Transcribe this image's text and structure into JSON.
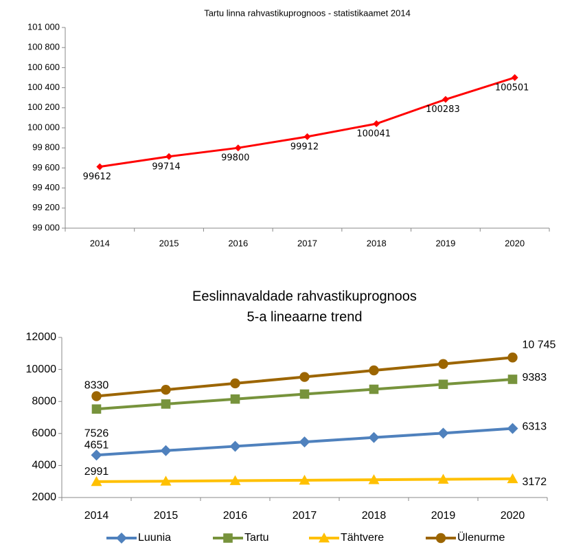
{
  "chart_data": [
    {
      "type": "line",
      "title": "Tartu linna rahvastikuprognoos - statistikaamet 2014",
      "categories": [
        "2014",
        "2015",
        "2016",
        "2017",
        "2018",
        "2019",
        "2020"
      ],
      "series": [
        {
          "name": "Tartu linn",
          "color": "#ff0000",
          "values": [
            99612,
            99714,
            99800,
            99912,
            100041,
            100283,
            100501
          ]
        }
      ],
      "ylim": [
        99000,
        101000
      ],
      "yticks": [
        {
          "value": 99000,
          "label": "99 000"
        },
        {
          "value": 99200,
          "label": "99 200"
        },
        {
          "value": 99400,
          "label": "99 400"
        },
        {
          "value": 99600,
          "label": "99 600"
        },
        {
          "value": 99800,
          "label": "99 800"
        },
        {
          "value": 100000,
          "label": "100 000"
        },
        {
          "value": 100200,
          "label": "100 200"
        },
        {
          "value": 100400,
          "label": "100 400"
        },
        {
          "value": 100600,
          "label": "100 600"
        },
        {
          "value": 100800,
          "label": "100 800"
        },
        {
          "value": 101000,
          "label": "101 000"
        }
      ],
      "legend": false
    },
    {
      "type": "line",
      "title": [
        "Eeslinnavaldade rahvastikuprognoos",
        "5-a lineaarne trend"
      ],
      "categories": [
        "2014",
        "2015",
        "2016",
        "2017",
        "2018",
        "2019",
        "2020"
      ],
      "series": [
        {
          "name": "Luunia",
          "color": "#4f81bd",
          "values": [
            4651,
            4930,
            5200,
            5470,
            5750,
            6020,
            6313
          ],
          "value_labels": [
            "4651",
            null,
            null,
            null,
            null,
            null,
            "6313"
          ]
        },
        {
          "name": "Tartu",
          "color": "#77933c",
          "values": [
            7526,
            7840,
            8150,
            8460,
            8760,
            9070,
            9383
          ],
          "value_labels": [
            "7526",
            null,
            null,
            null,
            null,
            null,
            "9383"
          ]
        },
        {
          "name": "Tähtvere",
          "color": "#ffc000",
          "values": [
            2991,
            3020,
            3050,
            3080,
            3110,
            3140,
            3172
          ],
          "value_labels": [
            "2991",
            null,
            null,
            null,
            null,
            null,
            "3172"
          ]
        },
        {
          "name": "Ülenurme",
          "color": "#9c6500",
          "values": [
            8330,
            8730,
            9130,
            9530,
            9940,
            10340,
            10745
          ],
          "value_labels": [
            "8330",
            null,
            null,
            null,
            null,
            null,
            "10 745"
          ]
        }
      ],
      "ylim": [
        2000,
        12000
      ],
      "yticks": [
        2000,
        4000,
        6000,
        8000,
        10000,
        12000
      ],
      "legend": "bottom"
    }
  ]
}
